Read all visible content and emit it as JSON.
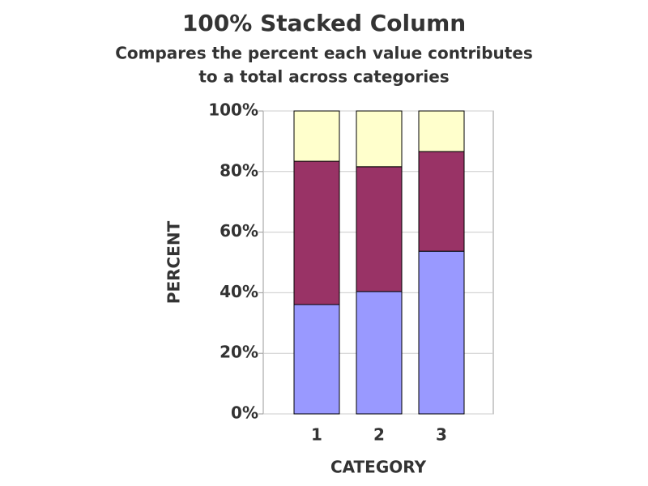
{
  "chart_data": {
    "type": "stacked_bar",
    "title": "100% Stacked Column",
    "subtitle": [
      "Compares the percent each value contributes",
      "to a total across categories"
    ],
    "x_label": "CATEGORY",
    "y_label": "PERCENT",
    "categories": [
      "1",
      "2",
      "3"
    ],
    "series": [
      {
        "color": "#9999ff",
        "values": [
          36.1,
          40.4,
          53.7
        ]
      },
      {
        "color": "#993366",
        "values": [
          47.3,
          41.2,
          32.9
        ]
      },
      {
        "color": "#ffffcc",
        "values": [
          16.6,
          18.4,
          13.4
        ]
      }
    ],
    "ylim": [
      0,
      100
    ],
    "yticks": [
      {
        "value": 0,
        "label": "0%"
      },
      {
        "value": 20,
        "label": "20%"
      },
      {
        "value": 40,
        "label": "40%"
      },
      {
        "value": 60,
        "label": "60%"
      },
      {
        "value": 80,
        "label": "80%"
      },
      {
        "value": 100,
        "label": "100%"
      }
    ],
    "grid": true
  }
}
